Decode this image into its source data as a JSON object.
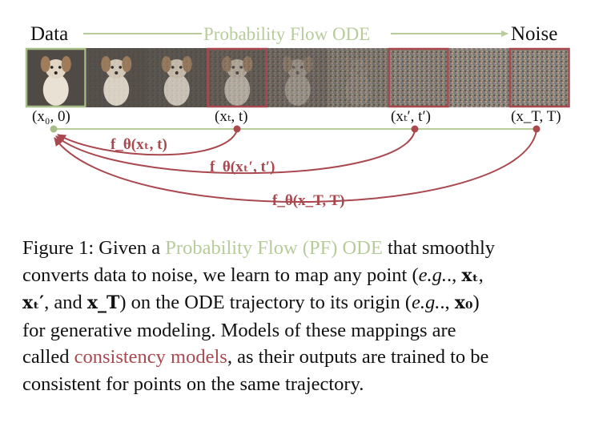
{
  "figure": {
    "left_label": "Data",
    "top_label": "Probability Flow ODE",
    "right_label": "Noise",
    "points": [
      {
        "label": "(x₀, 0)"
      },
      {
        "label": "(xₜ, t)"
      },
      {
        "label": "(xₜ′, t′)"
      },
      {
        "label": "(x_T, T)"
      }
    ],
    "mappings": [
      {
        "label": "f_θ(xₜ, t)"
      },
      {
        "label": "f_θ(xₜ′, t′)"
      },
      {
        "label": "f_θ(x_T, T)"
      }
    ],
    "noise_levels": [
      0,
      0.05,
      0.12,
      0.25,
      0.45,
      0.7,
      0.85,
      0.95,
      1.0
    ],
    "colors": {
      "green": "#b7cc9a",
      "red": "#a9494f",
      "highlight_green": "#a6be86"
    }
  },
  "caption": {
    "lines": [
      [
        "Figure 1: Given a ",
        "Probability Flow (PF) ODE",
        " that smoothly"
      ],
      [
        "converts data to noise, we learn to map any point (",
        "e.g.",
        "., ",
        "xₜ",
        ","
      ],
      [
        "xₜ′",
        ", and ",
        "x_T",
        ") on the ODE trajectory to its origin (",
        "e.g.",
        "., ",
        "x₀",
        ")"
      ],
      [
        "for generative modeling.  Models of these mappings are"
      ],
      [
        "called ",
        "consistency models",
        ", as their outputs are trained to be"
      ],
      [
        "consistent for points on the same trajectory."
      ]
    ]
  }
}
